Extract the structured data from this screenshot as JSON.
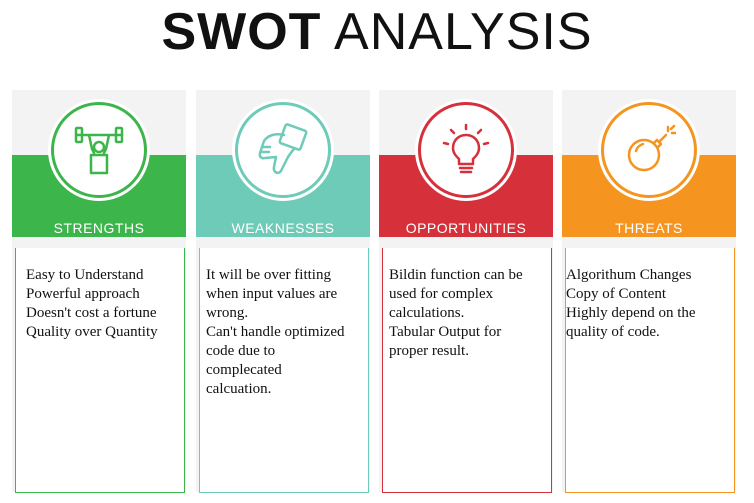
{
  "title": {
    "bold": "SWOT",
    "regular": "ANALYSIS"
  },
  "cards": [
    {
      "heading": "STRENGTHS",
      "color": "#3cb54a",
      "icon": "weightlifter-icon",
      "lines": "Easy to Understand\nPowerful approach\nDoesn't cost a fortune\nQuality over Quantity"
    },
    {
      "heading": "WEAKNESSES",
      "color": "#6dcbb8",
      "icon": "thumbs-down-icon",
      "lines": "It will be over fitting\nwhen input values are\n wrong.\nCan't handle optimized\ncode due to\ncomplecated\ncalcuation."
    },
    {
      "heading": "OPPORTUNITIES",
      "color": "#d6303b",
      "icon": "lightbulb-icon",
      "lines": "Bildin function can be\nused for complex\ncalculations.\nTabular Output for\nproper result."
    },
    {
      "heading": "THREATS",
      "color": "#f5941e",
      "icon": "bomb-icon",
      "lines": "Algorithum Changes\nCopy of Content\nHighly depend on the\nquality of code."
    }
  ]
}
